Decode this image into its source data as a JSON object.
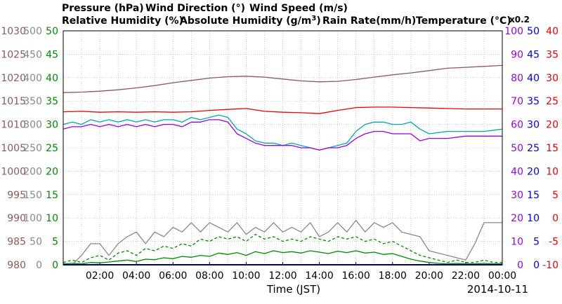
{
  "chart_data": {
    "type": "line",
    "date": "2014-10-11",
    "xlabel": "Time (JST)",
    "x_ticks": [
      "02:00",
      "04:00",
      "06:00",
      "08:00",
      "10:00",
      "12:00",
      "14:00",
      "16:00",
      "18:00",
      "20:00",
      "22:00",
      "00:00"
    ],
    "xlim": [
      0,
      24
    ],
    "grid": true,
    "legend": {
      "pressure": "Pressure (hPa)",
      "wind_dir": "Wind Direction (°)",
      "wind_speed": "Wind Speed (m/s)",
      "rel_hum": "Relative Humidity (%)",
      "abs_hum_prefix": "Absolute Humidity (g/m",
      "abs_hum_sup": "3",
      "abs_hum_suffix": ")",
      "abs_hum_scale": "x0.2",
      "rain": "Rain Rate(mm/h)",
      "temp": "Temperature (°C)"
    },
    "axes": {
      "pressure": {
        "range": [
          980,
          1030
        ],
        "ticks": [
          "980",
          "985",
          "990",
          "995",
          "1000",
          "1005",
          "1010",
          "1015",
          "1020",
          "1025",
          "1030"
        ]
      },
      "wind_dir": {
        "range": [
          0,
          500
        ],
        "ticks": [
          "0",
          "50",
          "100",
          "150",
          "200",
          "250",
          "300",
          "350",
          "400",
          "450",
          "500"
        ]
      },
      "wind_speed": {
        "range": [
          0,
          50
        ],
        "ticks": [
          "0",
          "5",
          "10",
          "15",
          "20",
          "25",
          "30",
          "35",
          "40",
          "45",
          "50"
        ]
      },
      "humidity": {
        "range": [
          0,
          100
        ],
        "ticks": [
          "0",
          "10",
          "20",
          "30",
          "40",
          "50",
          "60",
          "70",
          "80",
          "90",
          "100"
        ]
      },
      "rain": {
        "range": [
          0,
          50
        ],
        "ticks": [
          "0",
          "5",
          "10",
          "15",
          "20",
          "25",
          "30",
          "35",
          "40",
          "45",
          "50"
        ]
      },
      "temp": {
        "range": [
          -10,
          40
        ],
        "ticks": [
          "-10",
          "-5",
          "0",
          "5",
          "10",
          "15",
          "20",
          "25",
          "30",
          "35",
          "40"
        ]
      }
    },
    "colors": {
      "pressure": "#8b5a5a",
      "wind_dir": "#888888",
      "wind_speed": "#008800",
      "rel_hum": "#9900ee",
      "abs_hum": "#00aaaa",
      "rain": "#0000dd",
      "temp": "#ee0000",
      "text": "#000000",
      "grid": "#aaaaaa"
    },
    "series": [
      {
        "key": "pressure",
        "axis": "pressure",
        "x": [
          0,
          1,
          2,
          3,
          4,
          5,
          6,
          7,
          8,
          9,
          10,
          11,
          12,
          13,
          14,
          15,
          16,
          17,
          18,
          19,
          20,
          21,
          22,
          23,
          24
        ],
        "values": [
          1016.8,
          1016.9,
          1017.1,
          1017.4,
          1017.8,
          1018.3,
          1018.9,
          1019.4,
          1019.9,
          1020.2,
          1020.3,
          1020.1,
          1019.7,
          1019.3,
          1019.1,
          1019.2,
          1019.6,
          1020.1,
          1020.6,
          1021.0,
          1021.5,
          1022.0,
          1022.2,
          1022.4,
          1022.6
        ]
      },
      {
        "key": "temp",
        "axis": "temp",
        "x": [
          0,
          1,
          2,
          3,
          4,
          5,
          6,
          7,
          8,
          9,
          10,
          11,
          12,
          13,
          14,
          15,
          16,
          17,
          18,
          19,
          20,
          21,
          22,
          23,
          24
        ],
        "values": [
          22.7,
          22.8,
          22.6,
          22.7,
          22.6,
          22.7,
          22.6,
          22.7,
          23.0,
          23.2,
          23.4,
          22.8,
          22.6,
          22.5,
          22.3,
          23.0,
          23.6,
          23.7,
          23.7,
          23.6,
          23.5,
          23.4,
          23.3,
          23.3,
          23.3
        ]
      },
      {
        "key": "abs_hum",
        "axis": "humidity",
        "x": [
          0,
          0.5,
          1,
          1.5,
          2,
          2.5,
          3,
          3.5,
          4,
          4.5,
          5,
          5.5,
          6,
          6.5,
          7,
          7.5,
          8,
          8.5,
          9,
          9.5,
          10,
          10.5,
          11,
          11.5,
          12,
          12.5,
          13,
          13.5,
          14,
          14.5,
          15,
          15.5,
          16,
          16.5,
          17,
          17.5,
          18,
          18.5,
          19,
          19.5,
          20,
          21,
          22,
          23,
          24
        ],
        "values": [
          60,
          61,
          60,
          62,
          61,
          62,
          61,
          62,
          61,
          62,
          61,
          62,
          62,
          61,
          63,
          62,
          63,
          64,
          63,
          58,
          56,
          53,
          52,
          52,
          51,
          52,
          51,
          50,
          49,
          50,
          51,
          52,
          57,
          60,
          61,
          61,
          60,
          60,
          61,
          58,
          56,
          57,
          57,
          57,
          58
        ]
      },
      {
        "key": "rel_hum",
        "axis": "humidity",
        "x": [
          0,
          0.5,
          1,
          1.5,
          2,
          2.5,
          3,
          3.5,
          4,
          4.5,
          5,
          5.5,
          6,
          6.5,
          7,
          7.5,
          8,
          8.5,
          9,
          9.5,
          10,
          10.5,
          11,
          11.5,
          12,
          12.5,
          13,
          13.5,
          14,
          14.5,
          15,
          15.5,
          16,
          16.5,
          17,
          17.5,
          18,
          18.5,
          19,
          19.5,
          20,
          21,
          22,
          23,
          24
        ],
        "values": [
          58,
          59,
          59,
          60,
          59,
          60,
          59,
          60,
          59,
          60,
          59,
          60,
          60,
          59,
          61,
          61,
          62,
          62,
          61,
          56,
          54,
          52,
          51,
          51,
          51,
          51,
          50,
          50,
          49,
          50,
          50,
          51,
          54,
          56,
          57,
          57,
          56,
          56,
          56,
          53,
          54,
          54,
          55,
          55,
          55
        ]
      },
      {
        "key": "wind_dir",
        "axis": "wind_dir",
        "x": [
          0,
          0.5,
          1,
          1.5,
          2,
          2.5,
          3,
          3.5,
          4,
          4.5,
          5,
          5.5,
          6,
          6.5,
          7,
          7.5,
          8,
          8.5,
          9,
          9.5,
          10,
          10.5,
          11,
          11.5,
          12,
          12.5,
          13,
          13.5,
          14,
          14.5,
          15,
          15.5,
          16,
          16.5,
          17,
          17.5,
          18,
          18.5,
          19,
          19.5,
          20,
          21,
          22,
          22.5,
          23,
          24
        ],
        "values": [
          0,
          0,
          20,
          45,
          45,
          20,
          45,
          60,
          70,
          45,
          70,
          60,
          80,
          70,
          90,
          70,
          90,
          80,
          70,
          90,
          65,
          80,
          70,
          90,
          70,
          80,
          70,
          90,
          60,
          70,
          90,
          70,
          95,
          70,
          90,
          80,
          90,
          70,
          65,
          60,
          30,
          20,
          10,
          45,
          90,
          90
        ]
      },
      {
        "key": "wind_speed_max",
        "axis": "wind_speed",
        "dashed": true,
        "x": [
          0,
          0.5,
          1,
          1.5,
          2,
          2.5,
          3,
          3.5,
          4,
          4.5,
          5,
          5.5,
          6,
          6.5,
          7,
          7.5,
          8,
          8.5,
          9,
          9.5,
          10,
          10.5,
          11,
          11.5,
          12,
          12.5,
          13,
          13.5,
          14,
          14.5,
          15,
          15.5,
          16,
          16.5,
          17,
          17.5,
          18,
          18.5,
          19,
          19.5,
          20,
          20.5,
          21,
          21.5,
          22,
          22.5,
          23,
          23.5,
          24
        ],
        "values": [
          0.5,
          1,
          0.5,
          1.5,
          2,
          1,
          2.5,
          3,
          2,
          3.5,
          3,
          4,
          3.5,
          4.5,
          4,
          5.5,
          5,
          6,
          5.5,
          6,
          5,
          6.5,
          5.5,
          6,
          5,
          5.5,
          5,
          6,
          5.5,
          5,
          6,
          5.5,
          6,
          5,
          5.5,
          4.5,
          5,
          4,
          3,
          2,
          1.5,
          1,
          0.5,
          1,
          0.5,
          0.5,
          1,
          0.5,
          0.5
        ]
      },
      {
        "key": "wind_speed",
        "axis": "wind_speed",
        "x": [
          0,
          0.5,
          1,
          1.5,
          2,
          2.5,
          3,
          3.5,
          4,
          4.5,
          5,
          5.5,
          6,
          6.5,
          7,
          7.5,
          8,
          8.5,
          9,
          9.5,
          10,
          10.5,
          11,
          11.5,
          12,
          12.5,
          13,
          13.5,
          14,
          14.5,
          15,
          15.5,
          16,
          16.5,
          17,
          17.5,
          18,
          18.5,
          19,
          19.5,
          20,
          20.5,
          21,
          21.5,
          22,
          22.5,
          23,
          23.5,
          24
        ],
        "values": [
          0.2,
          0.3,
          0.2,
          0.5,
          0.4,
          0.6,
          0.8,
          1,
          0.7,
          1.2,
          1.1,
          1.5,
          1.3,
          1.8,
          1.6,
          2,
          1.8,
          2.5,
          2.2,
          2.6,
          2,
          2.8,
          2.4,
          3,
          2.6,
          2.8,
          2.5,
          3,
          2.7,
          2.4,
          2.9,
          2.6,
          3,
          2.5,
          2.7,
          2.2,
          2.4,
          1.8,
          1.2,
          0.8,
          0.5,
          0.3,
          0.2,
          0.3,
          0.2,
          0.2,
          0.3,
          0.2,
          0.2
        ]
      },
      {
        "key": "rain",
        "axis": "rain",
        "x": [
          0,
          24
        ],
        "values": [
          0,
          0
        ]
      }
    ]
  }
}
